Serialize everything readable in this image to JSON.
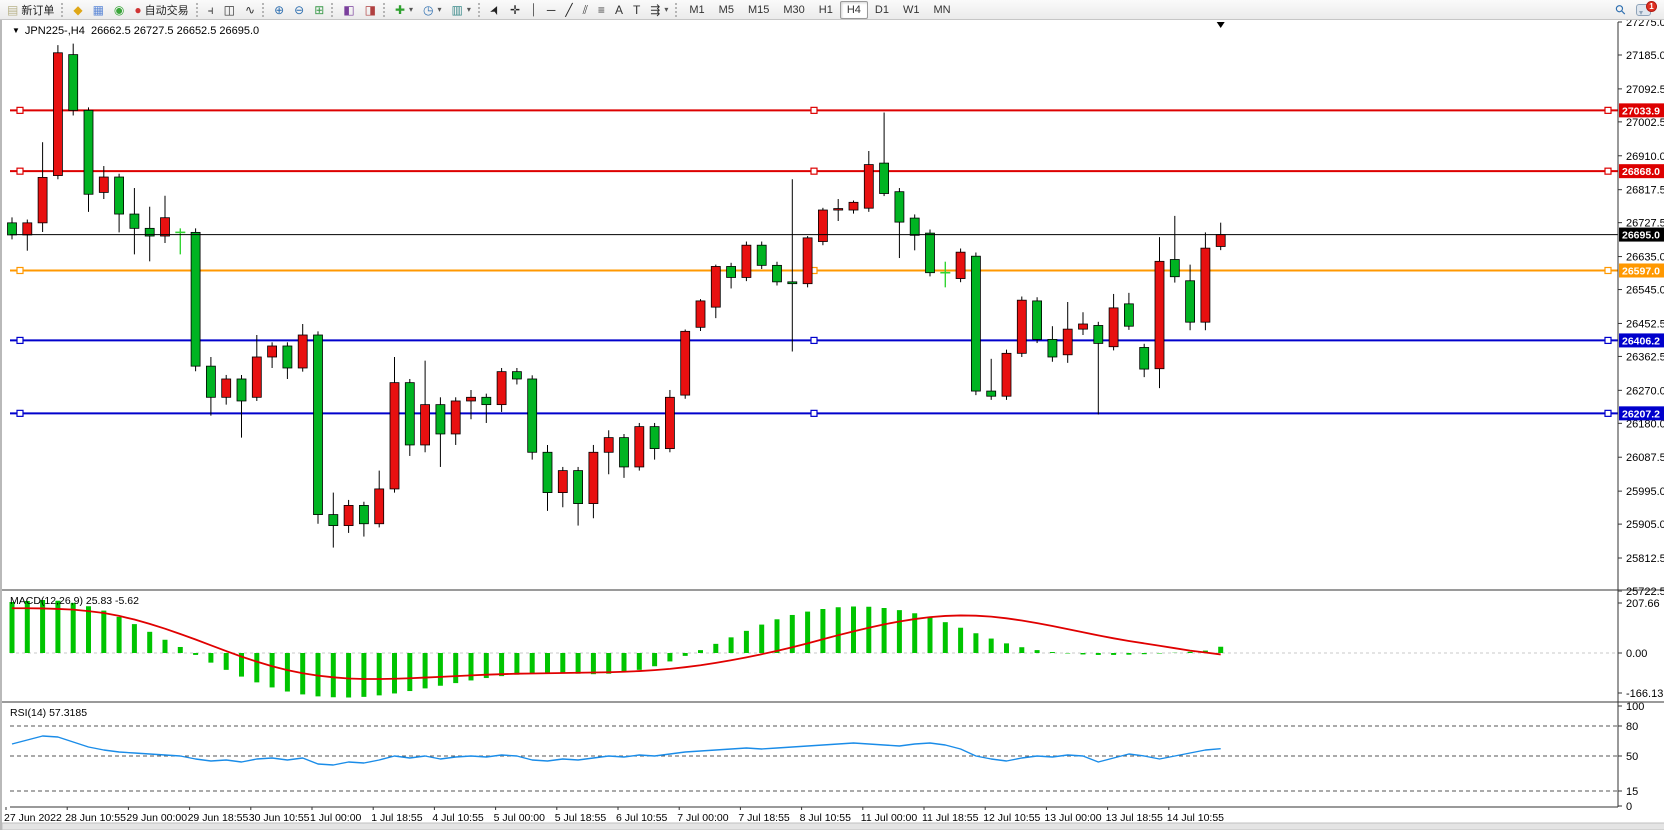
{
  "toolbar": {
    "groups": [
      {
        "items": [
          {
            "name": "new-order-button",
            "glyph": "▤",
            "glyph_color": "#b8b28a",
            "label": "新订单"
          }
        ]
      },
      {
        "items": [
          {
            "name": "market-watch-button",
            "glyph": "◆",
            "glyph_color": "#dfa716"
          },
          {
            "name": "data-window-button",
            "glyph": "▦",
            "glyph_color": "#5b87d6"
          },
          {
            "name": "news-feed-button",
            "glyph": "◉",
            "glyph_color": "#3aa63a"
          },
          {
            "name": "autotrading-button",
            "glyph": "●",
            "glyph_color": "#d03434",
            "label": "自动交易"
          }
        ]
      },
      {
        "items": [
          {
            "name": "bar-chart-button",
            "glyph": "⫞",
            "glyph_color": "#333333"
          },
          {
            "name": "candlestick-chart-button",
            "glyph": "◫",
            "glyph_color": "#333333"
          },
          {
            "name": "line-chart-button",
            "glyph": "∿",
            "glyph_color": "#333333"
          }
        ]
      },
      {
        "items": [
          {
            "name": "zoom-in-button",
            "glyph": "⊕",
            "glyph_color": "#2e6fb0"
          },
          {
            "name": "zoom-out-button",
            "glyph": "⊖",
            "glyph_color": "#2e6fb0"
          },
          {
            "name": "tile-windows-button",
            "glyph": "⊞",
            "glyph_color": "#3a9a4a"
          }
        ]
      },
      {
        "items": [
          {
            "name": "auto-arrange-button",
            "glyph": "◧",
            "glyph_color": "#7a3f9c"
          },
          {
            "name": "chart-shift-button",
            "glyph": "◨",
            "glyph_color": "#b04040"
          }
        ]
      },
      {
        "items": [
          {
            "name": "add-indicator-button",
            "glyph": "✚",
            "glyph_color": "#2fa12f",
            "dropdown": true
          },
          {
            "name": "periods-button",
            "glyph": "◷",
            "glyph_color": "#2e6fb0",
            "dropdown": true
          },
          {
            "name": "templates-button",
            "glyph": "▥",
            "glyph_color": "#3a8a8a",
            "dropdown": true
          }
        ]
      },
      {
        "items": [
          {
            "name": "cursor-tool-button",
            "glyph": "➤",
            "glyph_color": "#222222"
          },
          {
            "name": "crosshair-tool-button",
            "glyph": "✛",
            "glyph_color": "#222222"
          },
          {
            "name": "vertical-line-tool-button",
            "glyph": "⏐",
            "glyph_color": "#222222"
          },
          {
            "name": "horizontal-line-tool-button",
            "glyph": "─",
            "glyph_color": "#222222"
          },
          {
            "name": "trendline-tool-button",
            "glyph": "╱",
            "glyph_color": "#222222"
          },
          {
            "name": "equidistant-channel-tool-button",
            "glyph": "⫽",
            "glyph_color": "#444444"
          },
          {
            "name": "fibonacci-tool-button",
            "glyph": "≡",
            "glyph_color": "#444444"
          },
          {
            "name": "text-tool-button",
            "glyph": "A",
            "glyph_color": "#333333"
          },
          {
            "name": "text-label-tool-button",
            "glyph": "T",
            "glyph_color": "#333333"
          },
          {
            "name": "arrows-tool-button",
            "glyph": "⇶",
            "glyph_color": "#333333",
            "dropdown": true
          }
        ]
      },
      {
        "timeframes": [
          {
            "label": "M1",
            "active": false
          },
          {
            "label": "M5",
            "active": false
          },
          {
            "label": "M15",
            "active": false
          },
          {
            "label": "M30",
            "active": false
          },
          {
            "label": "H1",
            "active": false
          },
          {
            "label": "H4",
            "active": true
          },
          {
            "label": "D1",
            "active": false
          },
          {
            "label": "W1",
            "active": false
          },
          {
            "label": "MN",
            "active": false
          }
        ]
      }
    ],
    "right": {
      "search_glyph": "⚲",
      "notification_count": "1"
    }
  },
  "chart": {
    "title_marker": "▼",
    "title": "JPN225-,H4  26662.5 26727.5 26652.5 26695.0",
    "symbol": "JPN225-",
    "timeframe": "H4",
    "ohlc_current": {
      "open": 26662.5,
      "high": 26727.5,
      "low": 26652.5,
      "close": 26695.0
    }
  },
  "chart_data": {
    "type": "candlestick",
    "symbol": "JPN225-",
    "period": "H4",
    "price_axis": {
      "min": 25722.5,
      "max": 27275.0,
      "ticks": [
        27275.0,
        27185.0,
        27092.5,
        27002.5,
        26910.0,
        26817.5,
        26727.5,
        26635.0,
        26545.0,
        26452.5,
        26362.5,
        26270.0,
        26180.0,
        26087.5,
        25995.0,
        25905.0,
        25812.5,
        25722.5
      ]
    },
    "current_price": {
      "value": 26695.0,
      "label": "26695.0",
      "color": "#000000"
    },
    "hlines": [
      {
        "price": 27033.9,
        "label": "27033.9",
        "color": "#dd0000"
      },
      {
        "price": 26868.0,
        "label": "26868.0",
        "color": "#dd0000"
      },
      {
        "price": 26597.0,
        "label": "26597.0",
        "color": "#ff9800"
      },
      {
        "price": 26406.2,
        "label": "26406.2",
        "color": "#0000cc"
      },
      {
        "price": 26207.2,
        "label": "26207.2",
        "color": "#0000cc"
      }
    ],
    "candles": [
      [
        26727,
        26742,
        26682,
        26694
      ],
      [
        26694,
        26736,
        26651,
        26727
      ],
      [
        26727,
        26947,
        26702,
        26851
      ],
      [
        26856,
        27212,
        26846,
        27191
      ],
      [
        27186,
        27216,
        27020,
        27034
      ],
      [
        27034,
        27042,
        26757,
        26805
      ],
      [
        26810,
        26882,
        26792,
        26852
      ],
      [
        26852,
        26861,
        26701,
        26751
      ],
      [
        26751,
        26822,
        26641,
        26712
      ],
      [
        26712,
        26771,
        26622,
        26691
      ],
      [
        26691,
        26801,
        26672,
        26741
      ],
      [
        26701,
        26712,
        26641,
        26701
      ],
      [
        26701,
        26712,
        26322,
        26336
      ],
      [
        26336,
        26361,
        26201,
        26251
      ],
      [
        26251,
        26312,
        26231,
        26301
      ],
      [
        26301,
        26312,
        26141,
        26241
      ],
      [
        26251,
        26421,
        26241,
        26361
      ],
      [
        26361,
        26401,
        26331,
        26391
      ],
      [
        26391,
        26401,
        26301,
        26331
      ],
      [
        26331,
        26451,
        26321,
        26421
      ],
      [
        26421,
        26431,
        25906,
        25931
      ],
      [
        25931,
        25991,
        25841,
        25901
      ],
      [
        25901,
        25971,
        25881,
        25956
      ],
      [
        25956,
        25966,
        25871,
        25906
      ],
      [
        25906,
        26051,
        25896,
        26001
      ],
      [
        26001,
        26361,
        25991,
        26291
      ],
      [
        26291,
        26301,
        26091,
        26121
      ],
      [
        26121,
        26351,
        26101,
        26231
      ],
      [
        26231,
        26251,
        26061,
        26151
      ],
      [
        26151,
        26251,
        26121,
        26241
      ],
      [
        26241,
        26271,
        26191,
        26251
      ],
      [
        26251,
        26261,
        26181,
        26231
      ],
      [
        26231,
        26331,
        26211,
        26321
      ],
      [
        26321,
        26331,
        26286,
        26301
      ],
      [
        26301,
        26311,
        26081,
        26101
      ],
      [
        26101,
        26121,
        25941,
        25991
      ],
      [
        25991,
        26061,
        25951,
        26051
      ],
      [
        26051,
        26061,
        25901,
        25961
      ],
      [
        25961,
        26121,
        25921,
        26101
      ],
      [
        26101,
        26161,
        26041,
        26141
      ],
      [
        26141,
        26151,
        26031,
        26061
      ],
      [
        26061,
        26181,
        26051,
        26171
      ],
      [
        26171,
        26181,
        26081,
        26111
      ],
      [
        26111,
        26271,
        26101,
        26251
      ],
      [
        26257,
        26436,
        26247,
        26431
      ],
      [
        26442,
        26519,
        26432,
        26514
      ],
      [
        26497,
        26613,
        26467,
        26608
      ],
      [
        26608,
        26618,
        26548,
        26578
      ],
      [
        26578,
        26676,
        26568,
        26666
      ],
      [
        26666,
        26676,
        26601,
        26611
      ],
      [
        26611,
        26621,
        26556,
        26566
      ],
      [
        26566,
        26846,
        26376,
        26561
      ],
      [
        26561,
        26691,
        26551,
        26686
      ],
      [
        26676,
        26768,
        26666,
        26762
      ],
      [
        26762,
        26792,
        26732,
        26766
      ],
      [
        26762,
        26788,
        26752,
        26783
      ],
      [
        26767,
        26923,
        26757,
        26886
      ],
      [
        26890,
        27028,
        26800,
        26807
      ],
      [
        26812,
        26822,
        26631,
        26729
      ],
      [
        26740,
        26750,
        26652,
        26693
      ],
      [
        26699,
        26709,
        26581,
        26591
      ],
      [
        26591,
        26621,
        26551,
        26591
      ],
      [
        26575,
        26657,
        26565,
        26647
      ],
      [
        26636,
        26646,
        26257,
        26268
      ],
      [
        26268,
        26356,
        26244,
        26254
      ],
      [
        26254,
        26381,
        26244,
        26371
      ],
      [
        26371,
        26526,
        26361,
        26516
      ],
      [
        26514,
        26524,
        26399,
        26409
      ],
      [
        26409,
        26445,
        26348,
        26361
      ],
      [
        26367,
        26511,
        26345,
        26437
      ],
      [
        26437,
        26483,
        26421,
        26451
      ],
      [
        26447,
        26457,
        26204,
        26398
      ],
      [
        26389,
        26533,
        26379,
        26495
      ],
      [
        26506,
        26536,
        26435,
        26445
      ],
      [
        26387,
        26397,
        26306,
        26328
      ],
      [
        26329,
        26688,
        26276,
        26622
      ],
      [
        26627,
        26746,
        26564,
        26580
      ],
      [
        26569,
        26613,
        26434,
        26456
      ],
      [
        26456,
        26701,
        26434,
        26658
      ],
      [
        26662.5,
        26727.5,
        26652.5,
        26695.0
      ]
    ],
    "colors": {
      "bull": "#e81010",
      "bear": "#00b422",
      "doji": "#33d433",
      "wick": "#000000"
    },
    "macd": {
      "label": "MACD(12,26,9) 25.83 -5.62",
      "params": "12,26,9",
      "main_value": 25.83,
      "signal_value": -5.62,
      "axis_ticks": [
        {
          "label": "207.66",
          "value": 207.66
        },
        {
          "label": "0.00",
          "value": 0
        },
        {
          "label": "-166.13",
          "value": -166.13
        }
      ],
      "hist_color": "#00c400",
      "signal_color": "#e00000",
      "histogram": [
        212,
        216,
        220,
        217,
        208,
        194,
        176,
        150,
        120,
        88,
        55,
        25,
        -8,
        -40,
        -70,
        -98,
        -122,
        -143,
        -160,
        -172,
        -180,
        -184,
        -185,
        -182,
        -176,
        -168,
        -158,
        -147,
        -136,
        -125,
        -114,
        -104,
        -96,
        -90,
        -86,
        -84,
        -84,
        -86,
        -88,
        -86,
        -80,
        -70,
        -55,
        -35,
        -12,
        12,
        38,
        65,
        92,
        118,
        140,
        158,
        172,
        183,
        190,
        193,
        192,
        187,
        178,
        165,
        148,
        128,
        105,
        82,
        60,
        40,
        24,
        12,
        4,
        -2,
        -6,
        -8,
        -8,
        -7,
        -5,
        -2,
        1,
        5,
        10,
        26
      ],
      "signal": [
        186,
        186,
        185,
        183,
        180,
        174,
        166,
        154,
        139,
        121,
        101,
        79,
        56,
        32,
        8,
        -15,
        -36,
        -55,
        -71,
        -84,
        -94,
        -101,
        -106,
        -108,
        -108,
        -107,
        -105,
        -102,
        -99,
        -96,
        -93,
        -90,
        -88,
        -86,
        -85,
        -84,
        -83,
        -82,
        -81,
        -80,
        -78,
        -75,
        -71,
        -66,
        -59,
        -51,
        -41,
        -30,
        -18,
        -5,
        9,
        24,
        40,
        57,
        74,
        90,
        105,
        119,
        131,
        141,
        149,
        154,
        156,
        155,
        151,
        144,
        135,
        124,
        112,
        99,
        86,
        73,
        61,
        50,
        40,
        30,
        20,
        10,
        2,
        -6
      ]
    },
    "rsi": {
      "label": "RSI(14) 57.3185",
      "period": 14,
      "value": 57.3185,
      "line_color": "#1a8ce8",
      "axis_ticks": [
        {
          "label": "100",
          "value": 100
        },
        {
          "label": "80",
          "value": 80
        },
        {
          "label": "50",
          "value": 50
        },
        {
          "label": "15",
          "value": 15
        },
        {
          "label": "0",
          "value": 0
        }
      ],
      "dashed_levels": [
        80,
        50,
        15
      ],
      "values": [
        62,
        66,
        70,
        69,
        64,
        59,
        56,
        54,
        53,
        52,
        51,
        50,
        47,
        45,
        46,
        44,
        47,
        48,
        46,
        48,
        42,
        41,
        44,
        43,
        46,
        50,
        48,
        50,
        47,
        49,
        50,
        49,
        51,
        50,
        46,
        45,
        47,
        46,
        48,
        50,
        49,
        51,
        50,
        52,
        54,
        55,
        56,
        57,
        58,
        57,
        58,
        59,
        60,
        61,
        62,
        63,
        62,
        61,
        60,
        62,
        63,
        61,
        57,
        50,
        47,
        45,
        48,
        50,
        49,
        51,
        50,
        44,
        48,
        52,
        50,
        47,
        50,
        53,
        56,
        57.32
      ]
    },
    "time_labels": [
      "27 Jun 2022",
      "28 Jun 10:55",
      "29 Jun 00:00",
      "29 Jun 18:55",
      "30 Jun 10:55",
      "1 Jul 00:00",
      "1 Jul 18:55",
      "4 Jul 10:55",
      "5 Jul 00:00",
      "5 Jul 18:55",
      "6 Jul 10:55",
      "7 Jul 00:00",
      "7 Jul 18:55",
      "8 Jul 10:55",
      "11 Jul 00:00",
      "11 Jul 18:55",
      "12 Jul 10:55",
      "13 Jul 00:00",
      "13 Jul 18:55",
      "14 Jul 10:55"
    ]
  }
}
